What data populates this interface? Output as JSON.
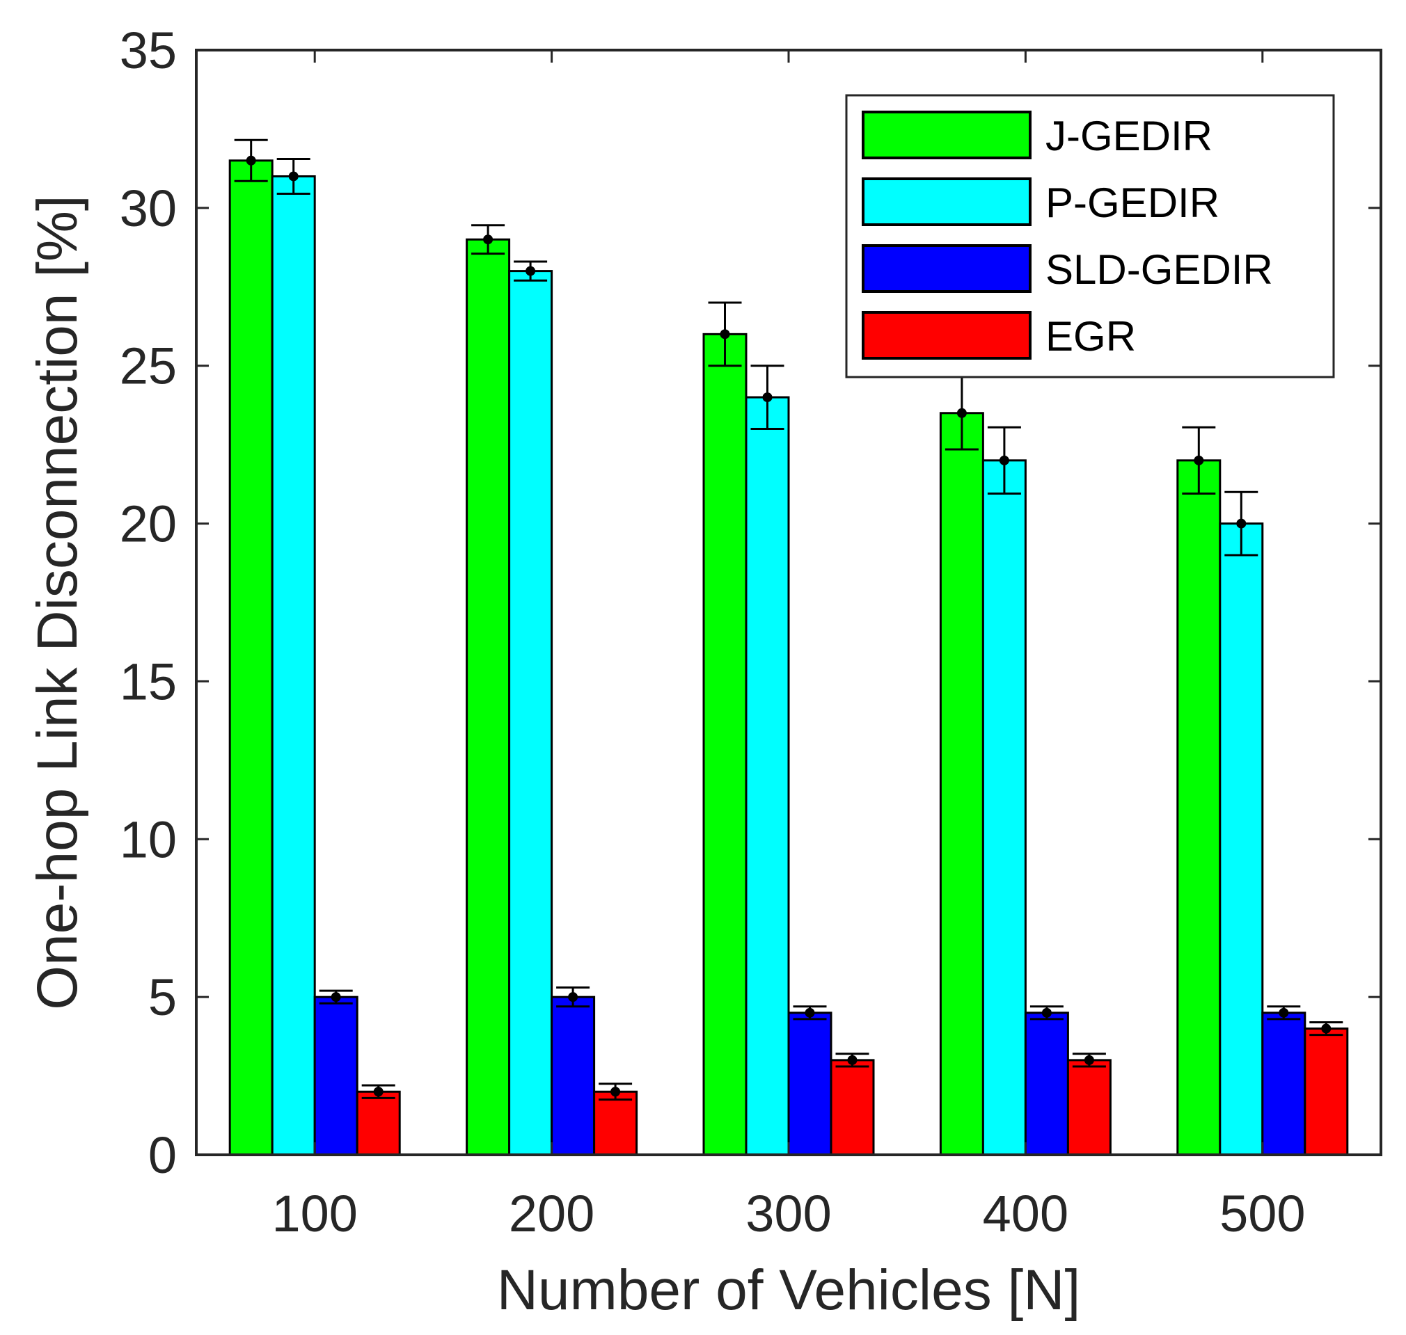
{
  "chart_data": {
    "type": "bar",
    "title": "",
    "xlabel": "Number of Vehicles [N]",
    "ylabel": "One-hop Link Disconnection [%]",
    "categories": [
      "100",
      "200",
      "300",
      "400",
      "500"
    ],
    "ylim": [
      0,
      35
    ],
    "yticks": [
      "0",
      "5",
      "10",
      "15",
      "20",
      "25",
      "30",
      "35"
    ],
    "grid": false,
    "legend_position": "top-right",
    "series": [
      {
        "name": "J-GEDIR",
        "color": "#00ff00",
        "values": [
          31.5,
          29.0,
          26.0,
          23.5,
          22.0
        ],
        "err": [
          0.65,
          0.45,
          1.0,
          1.15,
          1.05
        ]
      },
      {
        "name": "P-GEDIR",
        "color": "#00ffff",
        "values": [
          31.0,
          28.0,
          24.0,
          22.0,
          20.0
        ],
        "err": [
          0.55,
          0.3,
          1.0,
          1.05,
          1.0
        ]
      },
      {
        "name": "SLD-GEDIR",
        "color": "#0000ff",
        "values": [
          5.0,
          5.0,
          4.5,
          4.5,
          4.5
        ],
        "err": [
          0.2,
          0.3,
          0.2,
          0.2,
          0.2
        ]
      },
      {
        "name": "EGR",
        "color": "#ff0000",
        "values": [
          2.0,
          2.0,
          3.0,
          3.0,
          4.0
        ],
        "err": [
          0.2,
          0.25,
          0.2,
          0.2,
          0.2
        ]
      }
    ]
  }
}
